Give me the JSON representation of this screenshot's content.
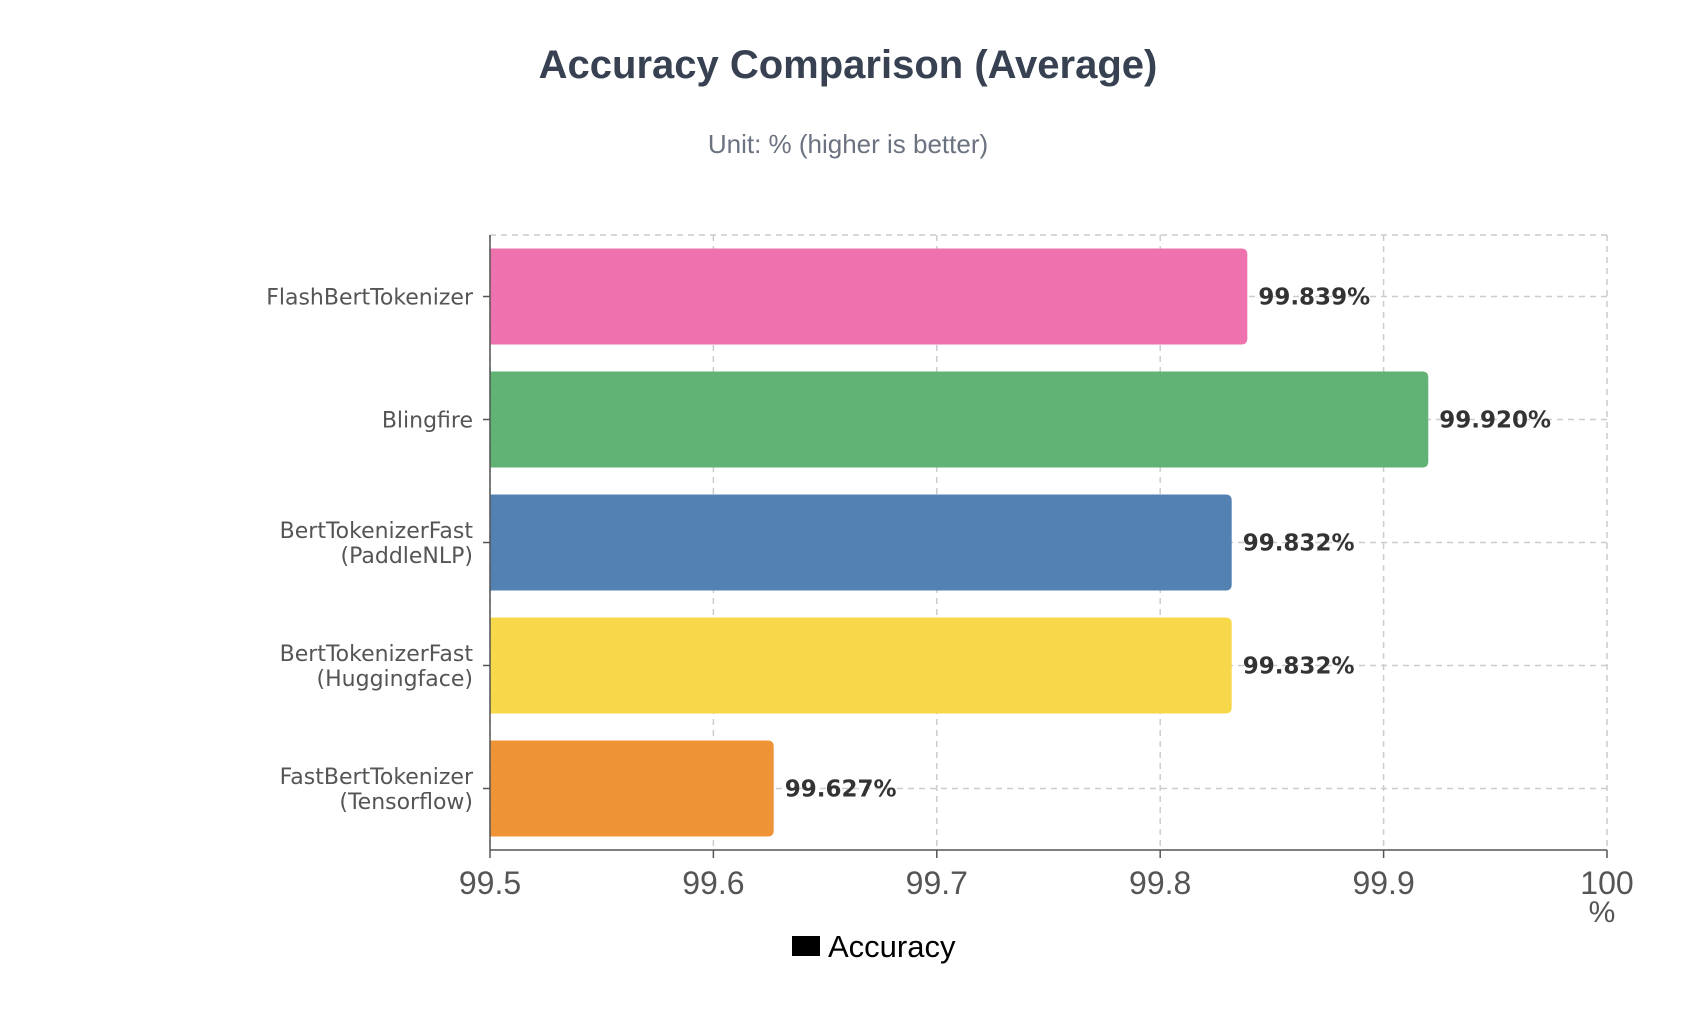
{
  "chart_data": {
    "type": "bar",
    "orientation": "horizontal",
    "title": "Accuracy Comparison (Average)",
    "subtitle": "Unit: % (higher is better)",
    "xlabel": "%",
    "ylabel": "",
    "xlim": [
      99.5,
      100
    ],
    "x_ticks": [
      99.5,
      99.6,
      99.7,
      99.8,
      99.9,
      100
    ],
    "x_tick_labels": [
      "99.5",
      "99.6",
      "99.7",
      "99.8",
      "99.9",
      "100"
    ],
    "grid": true,
    "legend_position": "bottom",
    "categories": [
      [
        "FlashBertTokenizer"
      ],
      [
        "Blingfire"
      ],
      [
        "BertTokenizerFast",
        "(PaddleNLP)"
      ],
      [
        "BertTokenizerFast",
        "(Huggingface)"
      ],
      [
        "FastBertTokenizer",
        "(Tensorflow)"
      ]
    ],
    "series": [
      {
        "name": "Accuracy",
        "values": [
          99.839,
          99.92,
          99.832,
          99.832,
          99.627
        ],
        "value_labels": [
          "99.839%",
          "99.920%",
          "99.832%",
          "99.832%",
          "99.627%"
        ]
      }
    ],
    "bar_colors": [
      "#ed72ae",
      "#61b275",
      "#5381b1",
      "#f7d84b",
      "#ef9337"
    ]
  },
  "colors": {
    "title": "#374151",
    "subtitle": "#6b7280",
    "axis_text": "#555555",
    "axis_line": "#555555",
    "grid": "#cccccc",
    "data_label": "#333333",
    "legend_swatch": "#000000",
    "legend_text": "#000000"
  }
}
